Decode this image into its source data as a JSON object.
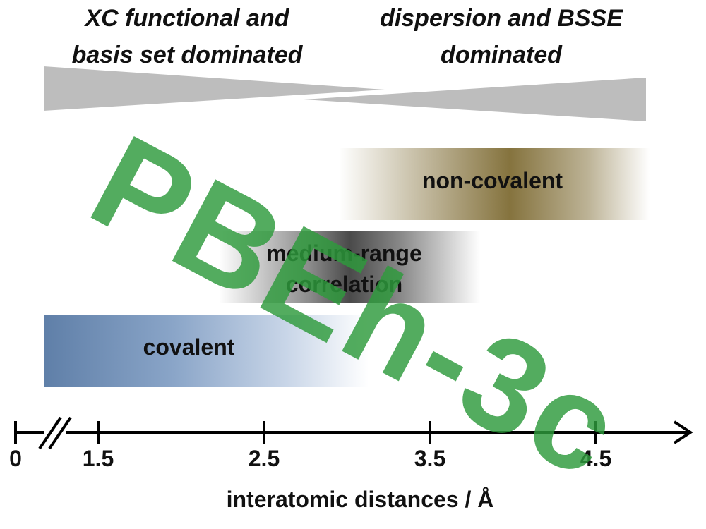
{
  "headers": {
    "left": [
      "XC functional and",
      "basis set dominated"
    ],
    "right": [
      "dispersion and BSSE",
      "dominated"
    ]
  },
  "bands": {
    "non_covalent": "non-covalent",
    "medium_range": [
      "medium-range",
      "correlation"
    ],
    "covalent": "covalent"
  },
  "axis": {
    "ticks": [
      "0",
      "1.5",
      "2.5",
      "3.5",
      "4.5"
    ],
    "title": "interatomic distances / Å"
  },
  "stamp": "PBEh-3c",
  "colors": {
    "wedge": "#bdbdbd",
    "non_covalent": "#85733e",
    "medium_range": "#4a4a4a",
    "covalent": "#5f7fa8",
    "stamp": "#2e9b3c"
  }
}
